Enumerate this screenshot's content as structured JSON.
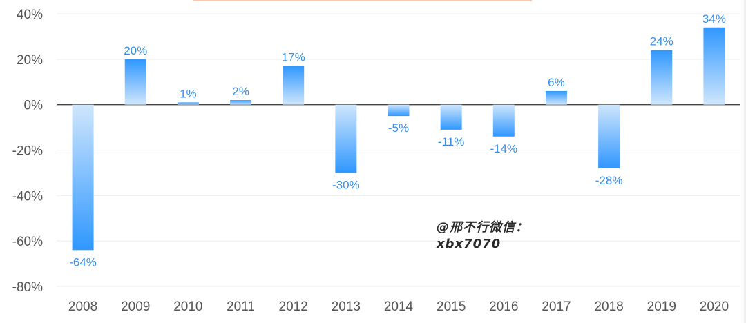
{
  "chart_data": {
    "type": "bar",
    "title": "",
    "xlabel": "",
    "ylabel": "",
    "categories": [
      "2008",
      "2009",
      "2010",
      "2011",
      "2012",
      "2013",
      "2014",
      "2015",
      "2016",
      "2017",
      "2018",
      "2019",
      "2020"
    ],
    "values": [
      -64,
      20,
      1,
      2,
      17,
      -30,
      -5,
      -11,
      -14,
      6,
      -28,
      24,
      34
    ],
    "data_labels": [
      "-64%",
      "20%",
      "1%",
      "2%",
      "17%",
      "-30%",
      "-5%",
      "-11%",
      "-14%",
      "6%",
      "-28%",
      "24%",
      "34%"
    ],
    "ylim": [
      -80,
      40
    ],
    "yticks": [
      40,
      20,
      0,
      -20,
      -40,
      -60,
      -80
    ],
    "ytick_labels": [
      "40%",
      "20%",
      "0%",
      "-20%",
      "-40%",
      "-60%",
      "-80%"
    ],
    "grid": true,
    "legend": "none",
    "colors": {
      "bar_strong": "#2f97ff",
      "bar_light": "#cfe6fc",
      "data_label": "#3a8ee6",
      "axis_text": "#555555",
      "gridline": "#eeeeee",
      "zero_line": "#444444"
    }
  },
  "watermark": {
    "line1": "@邢不行微信：",
    "line2": "xbx7070"
  }
}
